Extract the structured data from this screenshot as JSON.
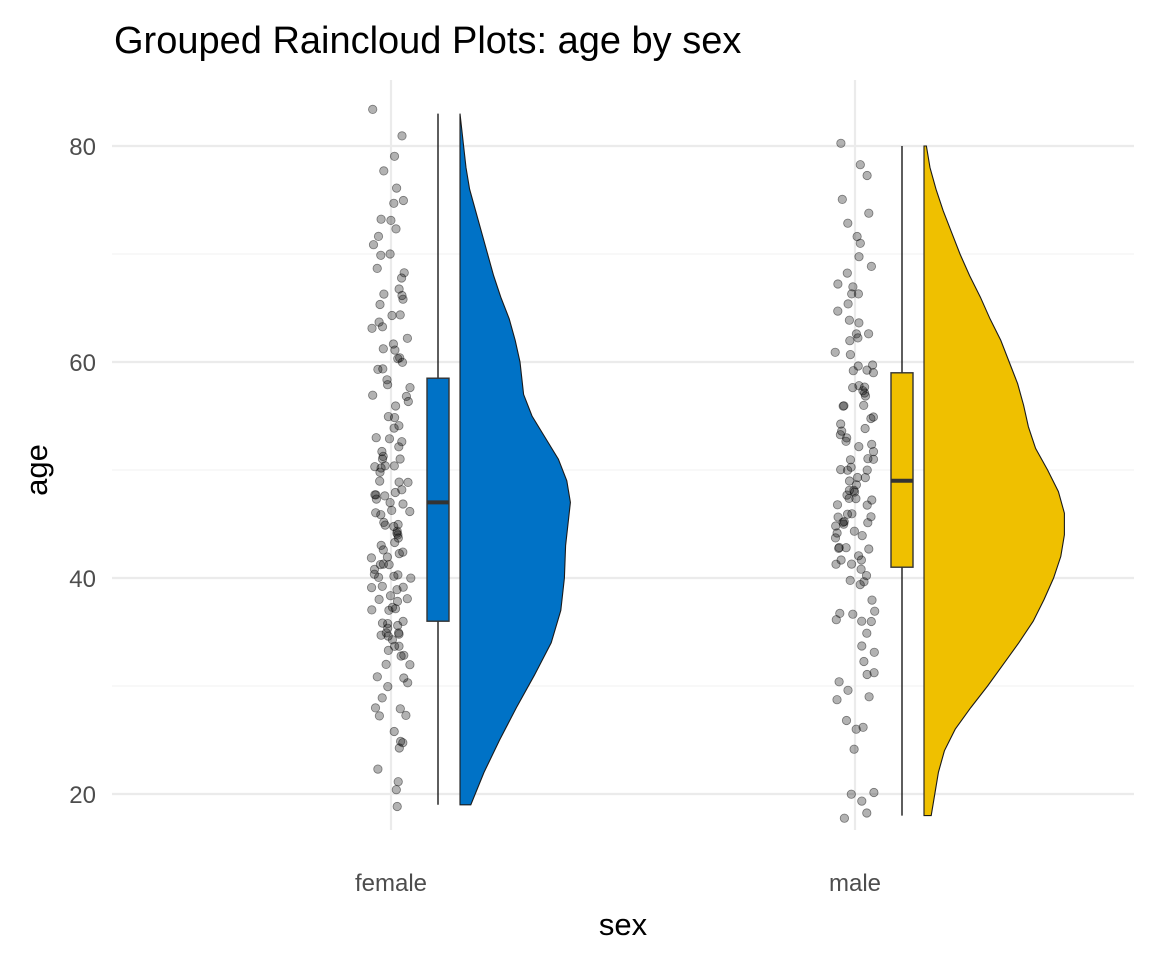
{
  "chart_data": {
    "type": "raincloud",
    "title": "Grouped Raincloud Plots: age by sex",
    "xlabel": "sex",
    "ylabel": "age",
    "ylim": [
      15,
      85
    ],
    "y_ticks": [
      20,
      40,
      60,
      80
    ],
    "y_minor_ticks": [
      30,
      50,
      70
    ],
    "grid": true,
    "categories": [
      "female",
      "male"
    ],
    "groups": [
      {
        "name": "female",
        "color": "#0072C6",
        "box": {
          "min": 19,
          "q1": 36,
          "median": 47,
          "q3": 58.5,
          "max": 83
        },
        "density": [
          [
            19,
            0.09
          ],
          [
            22,
            0.2
          ],
          [
            25,
            0.33
          ],
          [
            28,
            0.47
          ],
          [
            31,
            0.62
          ],
          [
            34,
            0.76
          ],
          [
            37,
            0.84
          ],
          [
            40,
            0.87
          ],
          [
            43,
            0.88
          ],
          [
            45,
            0.9
          ],
          [
            47,
            0.92
          ],
          [
            49,
            0.89
          ],
          [
            51,
            0.82
          ],
          [
            53,
            0.71
          ],
          [
            55,
            0.6
          ],
          [
            57,
            0.53
          ],
          [
            60,
            0.5
          ],
          [
            62,
            0.46
          ],
          [
            64,
            0.41
          ],
          [
            66,
            0.34
          ],
          [
            68,
            0.28
          ],
          [
            70,
            0.23
          ],
          [
            72,
            0.18
          ],
          [
            74,
            0.13
          ],
          [
            76,
            0.08
          ],
          [
            78,
            0.05
          ],
          [
            80,
            0.03
          ],
          [
            82,
            0.01
          ],
          [
            83,
            0.0
          ]
        ],
        "points": [
          19,
          20,
          21,
          22,
          24,
          25,
          25,
          26,
          27,
          27,
          28,
          28,
          29,
          30,
          30,
          31,
          31,
          32,
          32,
          33,
          33,
          33,
          34,
          34,
          34,
          35,
          35,
          35,
          35,
          35,
          35,
          36,
          36,
          36,
          36,
          37,
          37,
          37,
          37,
          38,
          38,
          38,
          38,
          39,
          39,
          39,
          39,
          40,
          40,
          40,
          40,
          40,
          41,
          41,
          41,
          41,
          42,
          42,
          42,
          42,
          43,
          43,
          43,
          44,
          44,
          44,
          44,
          45,
          45,
          45,
          45,
          46,
          46,
          46,
          46,
          47,
          47,
          47,
          48,
          48,
          48,
          48,
          48,
          49,
          49,
          49,
          50,
          50,
          50,
          50,
          50,
          51,
          51,
          51,
          52,
          52,
          53,
          53,
          53,
          54,
          54,
          55,
          55,
          56,
          56,
          57,
          57,
          58,
          58,
          58,
          59,
          59,
          60,
          60,
          60,
          61,
          61,
          62,
          62,
          63,
          63,
          64,
          64,
          64,
          65,
          66,
          66,
          66,
          67,
          68,
          68,
          69,
          70,
          70,
          71,
          72,
          72,
          73,
          73,
          75,
          75,
          76,
          78,
          79,
          81,
          83
        ]
      },
      {
        "name": "male",
        "color": "#EFC000",
        "box": {
          "min": 18,
          "q1": 41,
          "median": 49,
          "q3": 59,
          "max": 80
        },
        "density": [
          [
            18,
            0.06
          ],
          [
            20,
            0.09
          ],
          [
            22,
            0.12
          ],
          [
            24,
            0.17
          ],
          [
            26,
            0.26
          ],
          [
            28,
            0.39
          ],
          [
            30,
            0.53
          ],
          [
            32,
            0.66
          ],
          [
            34,
            0.79
          ],
          [
            36,
            0.91
          ],
          [
            38,
            1.0
          ],
          [
            40,
            1.08
          ],
          [
            42,
            1.14
          ],
          [
            44,
            1.17
          ],
          [
            46,
            1.17
          ],
          [
            48,
            1.12
          ],
          [
            50,
            1.03
          ],
          [
            52,
            0.93
          ],
          [
            54,
            0.87
          ],
          [
            56,
            0.83
          ],
          [
            58,
            0.78
          ],
          [
            60,
            0.71
          ],
          [
            62,
            0.64
          ],
          [
            64,
            0.55
          ],
          [
            66,
            0.47
          ],
          [
            68,
            0.38
          ],
          [
            70,
            0.3
          ],
          [
            72,
            0.23
          ],
          [
            74,
            0.16
          ],
          [
            76,
            0.1
          ],
          [
            78,
            0.05
          ],
          [
            80,
            0.02
          ]
        ],
        "points": [
          18,
          18,
          19,
          20,
          20,
          24,
          26,
          26,
          27,
          29,
          29,
          30,
          30,
          31,
          31,
          32,
          33,
          34,
          35,
          36,
          36,
          36,
          37,
          37,
          37,
          38,
          39,
          40,
          40,
          40,
          41,
          41,
          41,
          42,
          42,
          42,
          43,
          43,
          43,
          43,
          44,
          44,
          44,
          44,
          45,
          45,
          45,
          45,
          45,
          46,
          46,
          46,
          46,
          47,
          47,
          47,
          47,
          47,
          48,
          48,
          48,
          48,
          49,
          49,
          49,
          49,
          50,
          50,
          50,
          50,
          51,
          51,
          51,
          52,
          52,
          52,
          53,
          53,
          53,
          54,
          54,
          54,
          55,
          55,
          56,
          56,
          56,
          57,
          57,
          57,
          58,
          58,
          58,
          59,
          59,
          59,
          60,
          60,
          61,
          61,
          62,
          62,
          63,
          63,
          64,
          64,
          65,
          65,
          66,
          66,
          67,
          67,
          68,
          69,
          70,
          71,
          72,
          73,
          74,
          75,
          77,
          78,
          80
        ]
      }
    ]
  }
}
